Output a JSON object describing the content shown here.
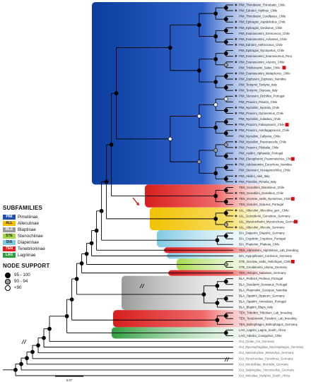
{
  "subfamilies_legend": {
    "title": "SUBFAMILIES",
    "items": [
      {
        "code": "PIM",
        "name": "Pimeliinae",
        "color": "#1f4fb5"
      },
      {
        "code": "ALL",
        "name": "Alleculinae",
        "color": "#f2c200"
      },
      {
        "code": "BLA",
        "name": "Blaptinae",
        "color": "#9a9a9a"
      },
      {
        "code": "STE",
        "name": "Stenochiinae",
        "color": "#a6d94a"
      },
      {
        "code": "DIA",
        "name": "Diaperinae",
        "color": "#7ec8e3"
      },
      {
        "code": "TEN",
        "name": "Tenebrioninae",
        "color": "#e02020"
      },
      {
        "code": "LAG",
        "name": "Lagriinae",
        "color": "#2e9e3e"
      }
    ]
  },
  "support_legend": {
    "title": "NODE SUPPORT",
    "items": [
      {
        "label": "95 - 100",
        "fill": "#000000"
      },
      {
        "label": "90 - 94",
        "fill": "#9a9a9a"
      },
      {
        "label": "<90",
        "fill": "#ffffff"
      }
    ]
  },
  "scale_label": "0.07",
  "tips": [
    "PIM_Thinobatini_Thinobatis_Chile",
    "PIM_Edrotini_Hylithus_Chile",
    "PIM_Thinobatini_Cordibates_Chile",
    "PIM_Epitragini_Aspidolobus_Chile",
    "PIM_Epitragini_Geoborus_Chile",
    "PIM_Evaniosomini_Eremoecus_Chile",
    "PIM_Evaniosomini_Achanius_Chile",
    "PIM_Edrotini_Anthrocinus_Chile",
    "PIM_Epitragini_Nyctopetus_Chile",
    "PIM_Evaniosomini_Evaniosomus_Peru",
    "PIM_Evaniosomini_Aryenis_Chile",
    "PIM_Trilobocarini_Salax_Chile",
    "PIM_Evaniosomini_Melaphorus_Chile",
    "PIM_Zophosini_Zophosis_Namibia",
    "PIM_Tentyrini_Tentyria_Italy",
    "PIM_Tentyrini_Oxycara_Italy",
    "PIM_Stenosini_Dichillus_Portugal",
    "PIM_Praocini_Praocis_Chile",
    "PIM_Nycteliini_Nyctelia_Chile",
    "PIM_Praocini_Gyriosomus_Chile",
    "PIM_Nycteliini_Auladera_Chile",
    "PIM_Praocini_Falsopraocis_Chile",
    "PIM_Praocini_Antofagapraocis_Chile",
    "PIM_Nycteliini_Callyntra_Chile",
    "PIM_Nycteliini_Psectrascelis_Chile",
    "PIM_Praocini_Pilobalia_Chile",
    "PIM_Asidini_Alphasida_Portugal",
    "PIM_Elenophorini_Psammetichus_Chile",
    "PIM_Adelostomini_Eurychora_Namibia",
    "PIM_Stenosini_Hexagonochilus_Chile",
    "PIM_Akidini_Akis_Italy",
    "PIM_Pimeliini_Pimelia_Italy",
    "TEN_Scotobiini_Diastoleus_Chile",
    "TEN_Scotobiini_Scotobius_Chile",
    "TEN_incertae_sedis_Nycterinus_Chile",
    "TEN_Scaurini_Scaurus_Portugal",
    "ALL_Alleculini_Alleculina_gen._Chile",
    "ALL_Gonoderini_Gonodera_Germany",
    "ALL_Mycetocharini_Mycetochara_Germany",
    "ALL_Alleculini_Allecula_Germany",
    "DIA_Diaperini_Diaperis_Germany",
    "DIA_Crypticini_Crypticus_Portugal",
    "DIA_Phaleriini_Phaleria_Chile",
    "TEN_Alphitobiini_Alphitobius_Lab_breeding",
    "DIA_Hypophloeini_Corticeus_Germany",
    "STE_incertae_sedis_Heliofugus_Chile",
    "STE_Cnodalonini_Uloma_Germany",
    "TEN_Helopini_Nalassus_Germany",
    "BLA_Pedinini_Pedinus_Portugal",
    "BLA_Dendarini_Dendarus_Portugal",
    "BLA_Platynotini_Gonopus_Namibia",
    "BLA_Opatrini_Opatrum_Germany",
    "BLA_Opatrini_Ammobius_Portugal",
    "BLA_Blaptini_Blaps_Italy",
    "TEN_Triboliini_Tribolium_Lab_breeding",
    "TEN_Tenebrionini_Tenebrio_Lab_breeding",
    "TEN_Bolitophagini_Bolitophagus_Germany",
    "LAG_Lagriini_Lagria_South_Africa",
    "LAG_Adeliini_Cossyphus_Chile",
    "Out_Ciidae_Cis_Germany",
    "Out_Mycetophagidae_Mycetophagus_Germany",
    "Out_Melandryidae_Melandrya_Germany",
    "Out_Pyrochroidae_Pyrochroa_Germany",
    "Out_Mordellidae_Mordella_Germany",
    "Out_Salpingidae_Vincenzellus_Germany",
    "Out_Meloidae_Mylabris_South_Africa"
  ]
}
